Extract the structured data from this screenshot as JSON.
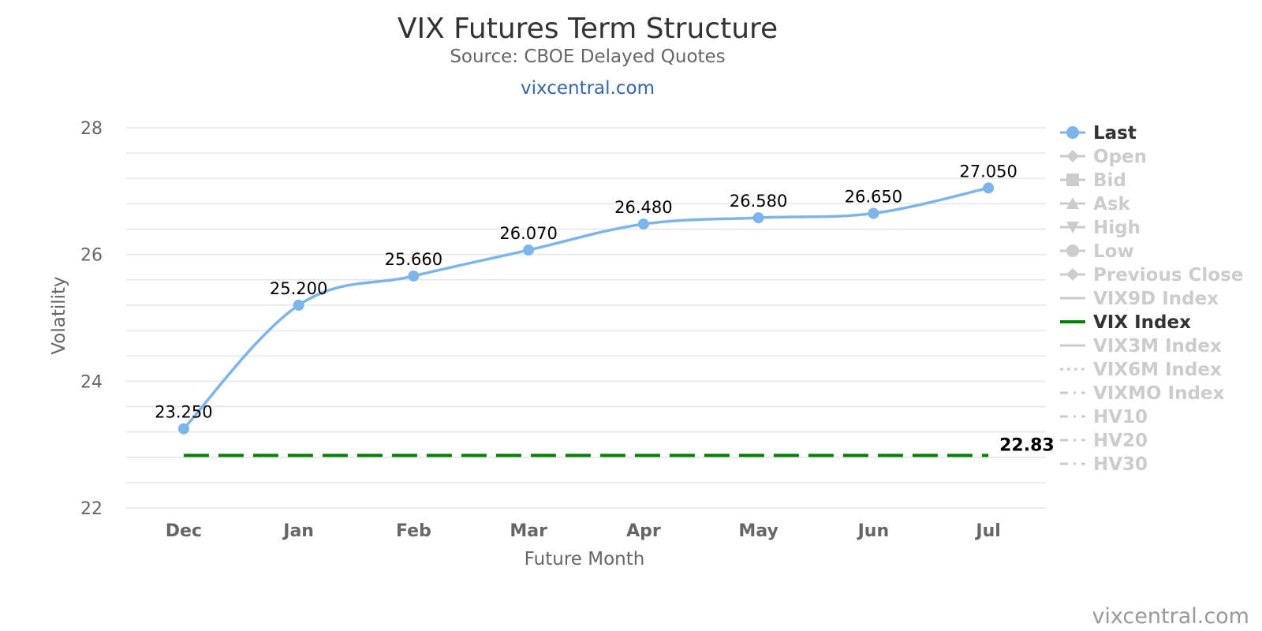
{
  "chart_data": {
    "type": "line",
    "title": "VIX Futures Term Structure",
    "subtitle": "Source: CBOE Delayed Quotes",
    "subtitle_link": "vixcentral.com",
    "credits": "vixcentral.com",
    "xlabel": "Future Month",
    "ylabel": "Volatility",
    "categories": [
      "Dec",
      "Jan",
      "Feb",
      "Mar",
      "Apr",
      "May",
      "Jun",
      "Jul"
    ],
    "ylim": [
      22,
      28
    ],
    "yticks": [
      22,
      24,
      26,
      28
    ],
    "grid": true,
    "legend_position": "right",
    "series": [
      {
        "name": "Last",
        "values": [
          23.25,
          25.2,
          25.66,
          26.07,
          26.48,
          26.58,
          26.65,
          27.05
        ],
        "data_labels": [
          "23.250",
          "25.200",
          "25.660",
          "26.070",
          "26.480",
          "26.580",
          "26.650",
          "27.050"
        ],
        "color": "#7cb5ec",
        "style": "solid-spline-markers"
      },
      {
        "name": "VIX Index",
        "values": [
          22.83,
          22.83,
          22.83,
          22.83,
          22.83,
          22.83,
          22.83,
          22.83
        ],
        "end_label": "22.83",
        "color": "#008000",
        "style": "dashed"
      }
    ],
    "legend": [
      {
        "name": "Last",
        "symbol": "circle",
        "active": true,
        "color": "#7cb5ec"
      },
      {
        "name": "Open",
        "symbol": "diamond",
        "active": false
      },
      {
        "name": "Bid",
        "symbol": "square",
        "active": false
      },
      {
        "name": "Ask",
        "symbol": "triangle",
        "active": false
      },
      {
        "name": "High",
        "symbol": "triangle-down",
        "active": false
      },
      {
        "name": "Low",
        "symbol": "circle",
        "active": false
      },
      {
        "name": "Previous Close",
        "symbol": "diamond",
        "active": false
      },
      {
        "name": "VIX9D Index",
        "symbol": "line-solid",
        "active": false
      },
      {
        "name": "VIX Index",
        "symbol": "line-solid",
        "active": true,
        "color": "#008000"
      },
      {
        "name": "VIX3M Index",
        "symbol": "line-solid",
        "active": false
      },
      {
        "name": "VIX6M Index",
        "symbol": "line-dotted",
        "active": false
      },
      {
        "name": "VIXMO Index",
        "symbol": "line-dashdot",
        "active": false
      },
      {
        "name": "HV10",
        "symbol": "line-dashdot",
        "active": false
      },
      {
        "name": "HV20",
        "symbol": "line-dashdot",
        "active": false
      },
      {
        "name": "HV30",
        "symbol": "line-dashdot",
        "active": false
      }
    ],
    "colors": {
      "inactive": "#cccccc",
      "active_text": "#333333",
      "grid": "#e6e6e6",
      "axis_text": "#666666",
      "link": "#3366aa"
    }
  }
}
